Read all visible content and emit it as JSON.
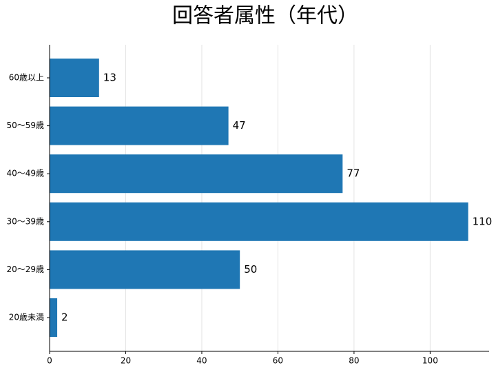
{
  "chart_data": {
    "type": "barh",
    "title": "回答者属性（年代）",
    "categories": [
      "20歳未満",
      "20～29歳",
      "30～39歳",
      "40～49歳",
      "50～59歳",
      "60歳以上"
    ],
    "values": [
      2,
      50,
      110,
      77,
      47,
      13
    ],
    "color": "#1f77b4",
    "xlim": [
      0,
      115.5
    ],
    "xticks": [
      0,
      20,
      40,
      60,
      80,
      100
    ],
    "grid": true
  }
}
